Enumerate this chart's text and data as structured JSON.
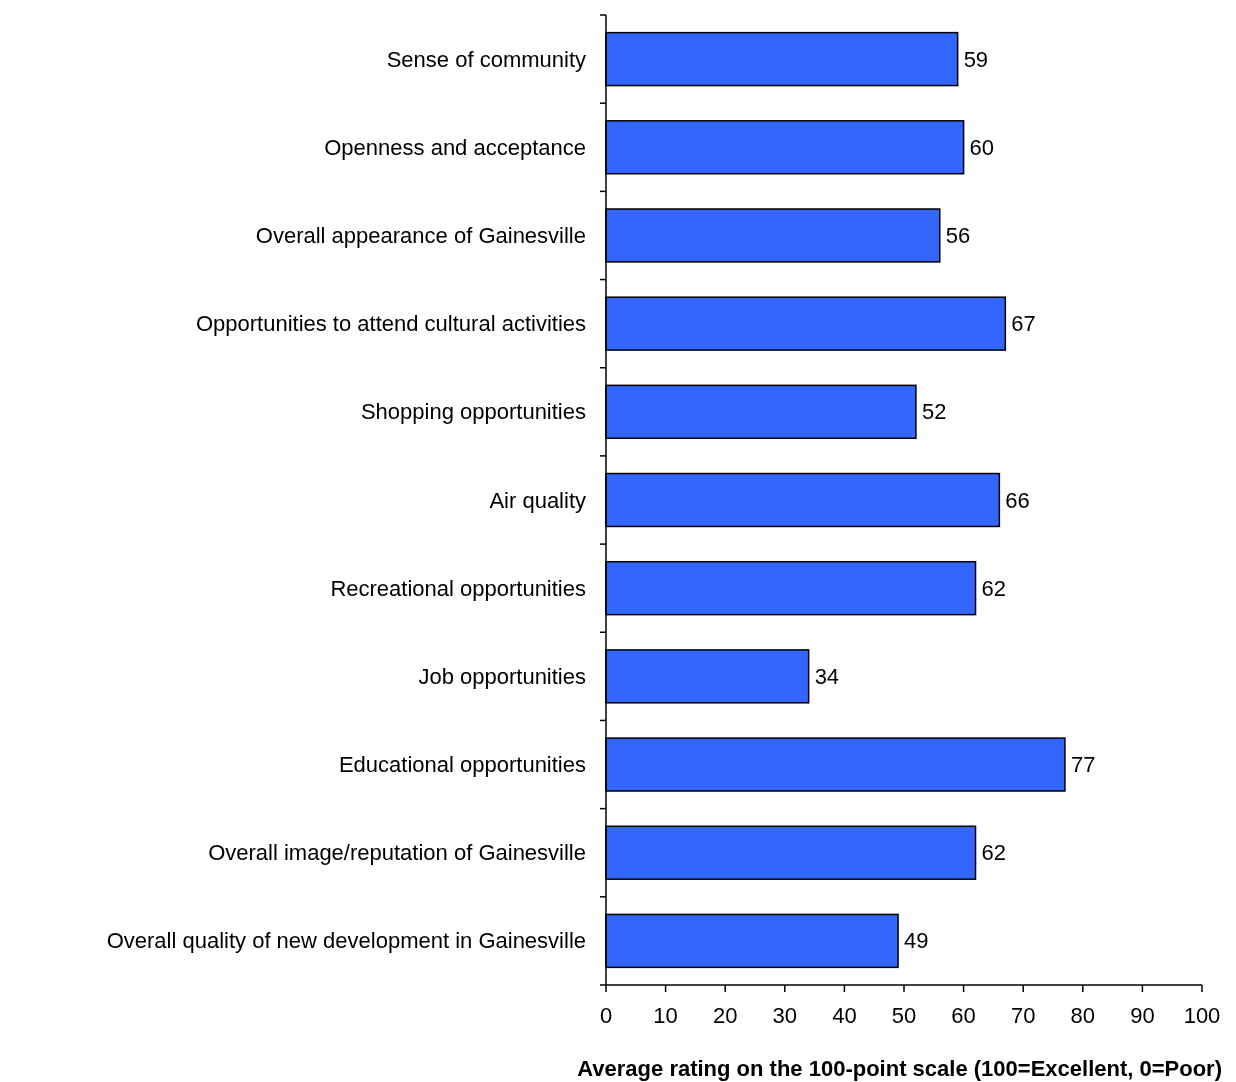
{
  "chart_data": {
    "type": "bar",
    "orientation": "horizontal",
    "xlabel": "Average rating on the 100-point scale (100=Excellent, 0=Poor)",
    "categories": [
      "Sense of community",
      "Openness and acceptance",
      "Overall appearance of Gainesville",
      "Opportunities to attend cultural activities",
      "Shopping opportunities",
      "Air quality",
      "Recreational opportunities",
      "Job opportunities",
      "Educational opportunities",
      "Overall image/reputation of Gainesville",
      "Overall quality of new development in Gainesville"
    ],
    "values": [
      59,
      60,
      56,
      67,
      52,
      66,
      62,
      34,
      77,
      62,
      49
    ],
    "color": "#3366ff",
    "xlim": [
      0,
      100
    ],
    "xticks": [
      0,
      10,
      20,
      30,
      40,
      50,
      60,
      70,
      80,
      90,
      100
    ],
    "data_labels": true,
    "grid": false
  }
}
